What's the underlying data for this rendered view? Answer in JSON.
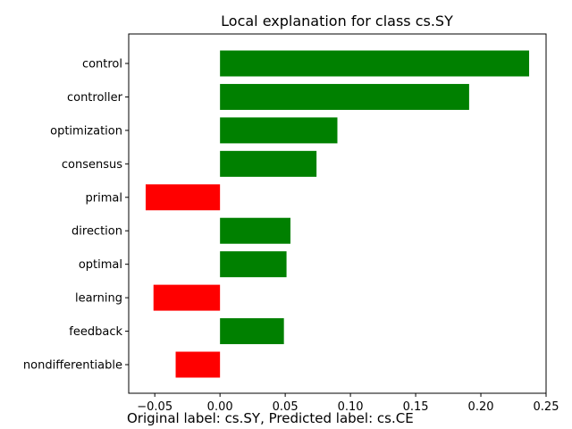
{
  "chart_data": {
    "type": "bar",
    "orientation": "horizontal",
    "title": "Local explanation for class cs.SY",
    "xlabel": "",
    "ylabel": "",
    "categories": [
      "control",
      "controller",
      "optimization",
      "consensus",
      "primal",
      "direction",
      "optimal",
      "learning",
      "feedback",
      "nondifferentiable"
    ],
    "values": [
      0.237,
      0.191,
      0.09,
      0.074,
      -0.057,
      0.054,
      0.051,
      -0.051,
      0.049,
      -0.034
    ],
    "xlim": [
      -0.07,
      0.25
    ],
    "xticks": [
      -0.05,
      0.0,
      0.05,
      0.1,
      0.15,
      0.2,
      0.25
    ],
    "xtick_labels": [
      "−0.05",
      "0.00",
      "0.05",
      "0.10",
      "0.15",
      "0.20",
      "0.25"
    ],
    "colors": {
      "positive": "#008000",
      "negative": "#ff0000"
    },
    "grid": false,
    "legend": "none"
  },
  "caption": "Original label: cs.SY, Predicted label: cs.CE"
}
